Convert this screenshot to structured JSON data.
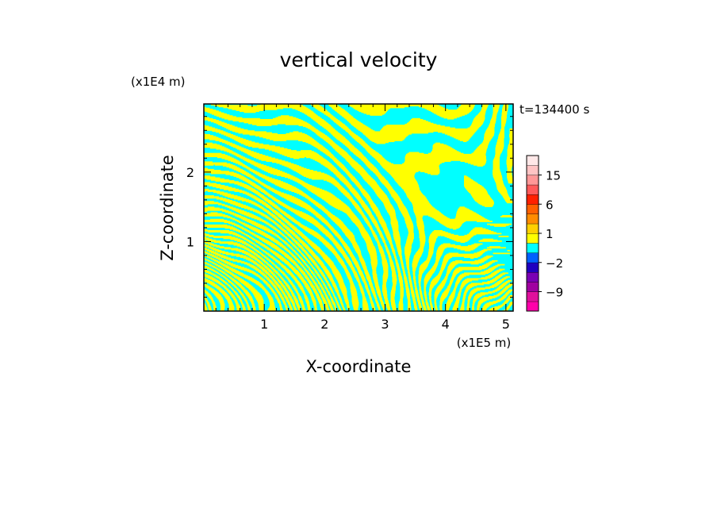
{
  "chart_data": {
    "type": "heatmap",
    "title": "vertical velocity",
    "xlabel": "X-coordinate",
    "ylabel": "Z-coordinate",
    "x_unit_label": "(x1E5 m)",
    "y_unit_label": "(x1E4 m)",
    "time_label": "t=134400 s",
    "xlim": [
      0,
      5.12
    ],
    "ylim": [
      0,
      2.98
    ],
    "x_ticks": [
      1,
      2,
      3,
      4,
      5
    ],
    "x_tick_labels": [
      "1",
      "2",
      "3",
      "4",
      "5"
    ],
    "y_ticks": [
      1,
      2
    ],
    "y_tick_labels": [
      "1",
      "2"
    ],
    "field_colors": {
      "positive": "#ffff00",
      "negative": "#00ffff"
    },
    "colorbar": {
      "levels": [
        {
          "lo": -15,
          "hi": -12,
          "color": "#ff00aa"
        },
        {
          "lo": -12,
          "hi": -9,
          "color": "#e0109c"
        },
        {
          "lo": -9,
          "hi": -6,
          "color": "#a000a0"
        },
        {
          "lo": -6,
          "hi": -4,
          "color": "#7a00b4"
        },
        {
          "lo": -4,
          "hi": -2,
          "color": "#2000c0"
        },
        {
          "lo": -2,
          "hi": -1,
          "color": "#0060ff"
        },
        {
          "lo": -1,
          "hi": 0,
          "color": "#00ffff"
        },
        {
          "lo": 0,
          "hi": 1,
          "color": "#ffff00"
        },
        {
          "lo": 1,
          "hi": 2,
          "color": "#ffd000"
        },
        {
          "lo": 2,
          "hi": 4,
          "color": "#ff8c00"
        },
        {
          "lo": 4,
          "hi": 6,
          "color": "#ff6000"
        },
        {
          "lo": 6,
          "hi": 9,
          "color": "#ff2000"
        },
        {
          "lo": 9,
          "hi": 12,
          "color": "#ff5a5a"
        },
        {
          "lo": 12,
          "hi": 15,
          "color": "#ff9898"
        },
        {
          "lo": 15,
          "hi": 18,
          "color": "#ffc4c4"
        },
        {
          "lo": 18,
          "hi": 21,
          "color": "#ffe8e8"
        }
      ],
      "tick_labels": [
        {
          "value": -9,
          "label": "−9"
        },
        {
          "value": -2,
          "label": "−2"
        },
        {
          "value": 1,
          "label": "1"
        },
        {
          "value": 6,
          "label": "6"
        },
        {
          "value": 15,
          "label": "15"
        }
      ]
    }
  }
}
